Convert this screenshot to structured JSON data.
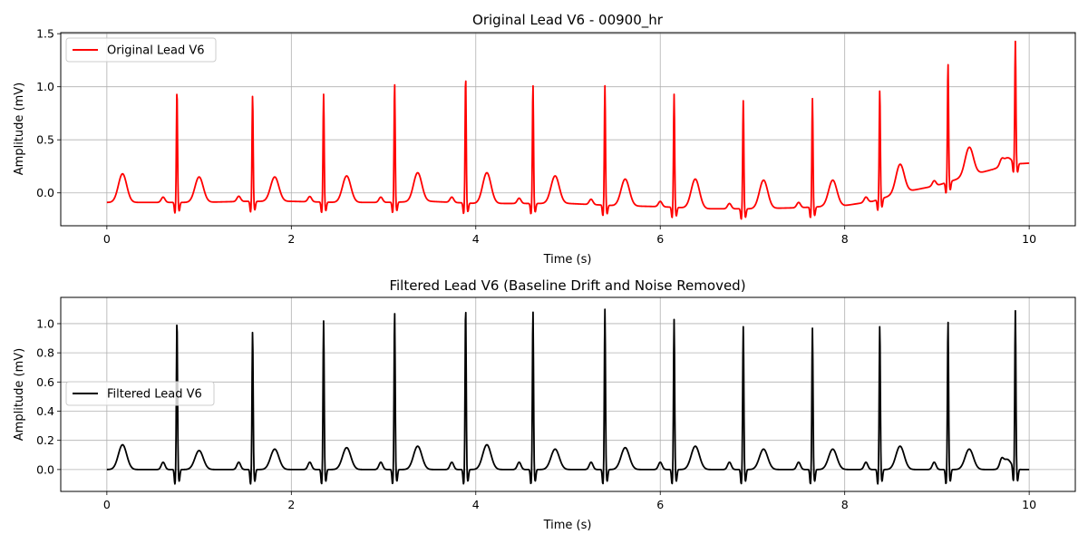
{
  "chart_data": [
    {
      "type": "line",
      "title": "Original Lead V6 - 00900_hr",
      "xlabel": "Time (s)",
      "ylabel": "Amplitude (mV)",
      "xlim": [
        -0.5,
        10.5
      ],
      "ylim": [
        -0.31,
        1.51
      ],
      "xticks": [
        0,
        2,
        4,
        6,
        8,
        10
      ],
      "xtick_labels": [
        "0",
        "2",
        "4",
        "6",
        "8",
        "10"
      ],
      "yticks": [
        0.0,
        0.5,
        1.0,
        1.5
      ],
      "ytick_labels": [
        "0.0",
        "0.5",
        "1.0",
        "1.5"
      ],
      "grid": true,
      "legend": "upper-left",
      "series": [
        {
          "name": "Original Lead V6",
          "color": "#ff0000",
          "x_start": 0,
          "x_end": 10,
          "baseline_points": [
            [
              0,
              -0.09
            ],
            [
              0.5,
              -0.09
            ],
            [
              1,
              -0.09
            ],
            [
              1.5,
              -0.08
            ],
            [
              2,
              -0.08
            ],
            [
              2.5,
              -0.09
            ],
            [
              3,
              -0.09
            ],
            [
              3.5,
              -0.08
            ],
            [
              4,
              -0.1
            ],
            [
              4.5,
              -0.1
            ],
            [
              5,
              -0.1
            ],
            [
              5.5,
              -0.12
            ],
            [
              6,
              -0.13
            ],
            [
              6.5,
              -0.15
            ],
            [
              7,
              -0.15
            ],
            [
              7.5,
              -0.14
            ],
            [
              8,
              -0.12
            ],
            [
              8.3,
              -0.08
            ],
            [
              8.6,
              0.0
            ],
            [
              9.0,
              0.07
            ],
            [
              9.3,
              0.15
            ],
            [
              9.6,
              0.22
            ],
            [
              9.8,
              0.27
            ],
            [
              10,
              0.28
            ]
          ],
          "r_peaks": [
            [
              0.76,
              0.97
            ],
            [
              1.58,
              0.92
            ],
            [
              2.35,
              0.93
            ],
            [
              3.12,
              1.03
            ],
            [
              3.89,
              1.1
            ],
            [
              4.62,
              1.02
            ],
            [
              5.4,
              1.01
            ],
            [
              6.15,
              0.93
            ],
            [
              6.9,
              0.87
            ],
            [
              7.65,
              0.89
            ],
            [
              8.38,
              0.97
            ],
            [
              9.12,
              1.22
            ],
            [
              9.85,
              1.42
            ]
          ],
          "t_waves": [
            [
              0.17,
              0.18
            ],
            [
              1.0,
              0.15
            ],
            [
              1.82,
              0.15
            ],
            [
              2.6,
              0.16
            ],
            [
              3.37,
              0.19
            ],
            [
              4.12,
              0.19
            ],
            [
              4.86,
              0.16
            ],
            [
              5.62,
              0.13
            ],
            [
              6.38,
              0.13
            ],
            [
              7.12,
              0.12
            ],
            [
              7.87,
              0.12
            ],
            [
              8.6,
              0.27
            ],
            [
              9.35,
              0.43
            ],
            [
              9.76,
              0.33
            ]
          ]
        }
      ]
    },
    {
      "type": "line",
      "title": "Filtered Lead V6 (Baseline Drift and Noise Removed)",
      "xlabel": "Time (s)",
      "ylabel": "Amplitude (mV)",
      "xlim": [
        -0.5,
        10.5
      ],
      "ylim": [
        -0.15,
        1.18
      ],
      "xticks": [
        0,
        2,
        4,
        6,
        8,
        10
      ],
      "xtick_labels": [
        "0",
        "2",
        "4",
        "6",
        "8",
        "10"
      ],
      "yticks": [
        0.0,
        0.2,
        0.4,
        0.6,
        0.8,
        1.0
      ],
      "ytick_labels": [
        "0.0",
        "0.2",
        "0.4",
        "0.6",
        "0.8",
        "1.0"
      ],
      "grid": true,
      "legend": "center-left",
      "series": [
        {
          "name": "Filtered Lead V6",
          "color": "#000000",
          "x_start": 0,
          "x_end": 10,
          "baseline_points": [
            [
              0,
              0.0
            ],
            [
              10,
              0.0
            ]
          ],
          "r_peaks": [
            [
              0.76,
              1.03
            ],
            [
              1.58,
              0.95
            ],
            [
              2.35,
              1.02
            ],
            [
              3.12,
              1.08
            ],
            [
              3.89,
              1.12
            ],
            [
              4.62,
              1.09
            ],
            [
              5.4,
              1.1
            ],
            [
              6.15,
              1.03
            ],
            [
              6.9,
              0.98
            ],
            [
              7.65,
              0.97
            ],
            [
              8.38,
              0.99
            ],
            [
              9.12,
              1.02
            ],
            [
              9.85,
              1.08
            ]
          ],
          "t_waves": [
            [
              0.17,
              0.17
            ],
            [
              1.0,
              0.13
            ],
            [
              1.82,
              0.14
            ],
            [
              2.6,
              0.15
            ],
            [
              3.37,
              0.16
            ],
            [
              4.12,
              0.17
            ],
            [
              4.86,
              0.14
            ],
            [
              5.62,
              0.15
            ],
            [
              6.38,
              0.16
            ],
            [
              7.12,
              0.14
            ],
            [
              7.87,
              0.14
            ],
            [
              8.6,
              0.16
            ],
            [
              9.35,
              0.14
            ],
            [
              9.76,
              0.07
            ]
          ]
        }
      ]
    }
  ]
}
